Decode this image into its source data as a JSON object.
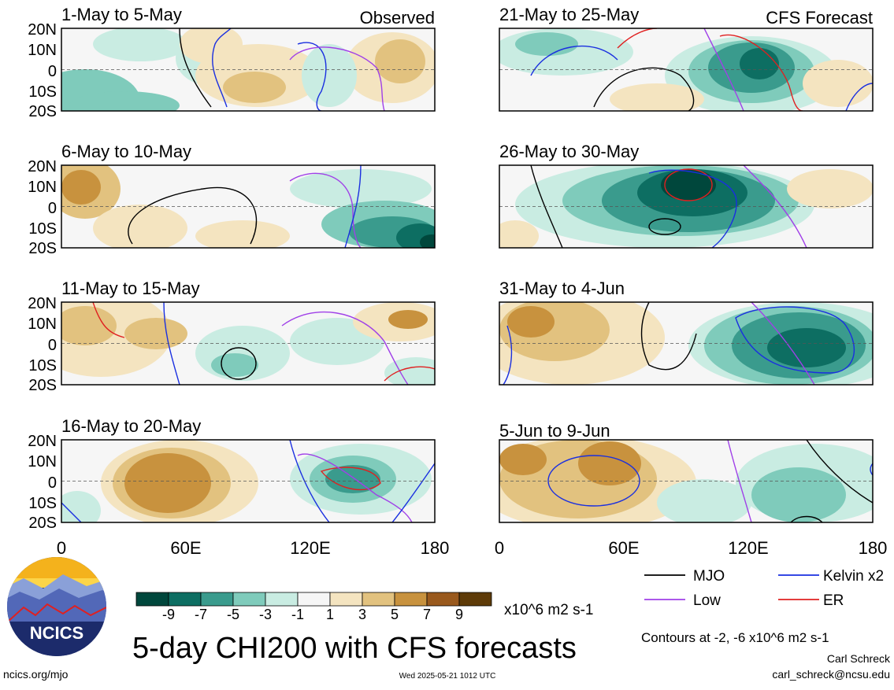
{
  "labels": {
    "observed": "Observed",
    "forecast": "CFS Forecast"
  },
  "panels": [
    {
      "date": "1-May to 5-May"
    },
    {
      "date": "6-May to 10-May"
    },
    {
      "date": "11-May to 15-May"
    },
    {
      "date": "16-May to 20-May"
    },
    {
      "date": "21-May to 25-May"
    },
    {
      "date": "26-May to 30-May"
    },
    {
      "date": "31-May to 4-Jun"
    },
    {
      "date": "5-Jun to 9-Jun"
    }
  ],
  "y_ticks": [
    "20N",
    "10N",
    "0",
    "10S",
    "20S"
  ],
  "x_ticks": [
    "0",
    "60E",
    "120E",
    "180"
  ],
  "colorbar": {
    "colors": [
      "#00473c",
      "#0d6e62",
      "#3a9b8d",
      "#7fcbbb",
      "#c9ece2",
      "#f6f6f6",
      "#f4e4c0",
      "#e2c27f",
      "#c8923e",
      "#99591d",
      "#5e3b08"
    ],
    "tick_labels": [
      "-9",
      "-7",
      "-5",
      "-3",
      "-1",
      "1",
      "3",
      "5",
      "7",
      "9"
    ],
    "units": "x10^6 m2 s-1"
  },
  "legend": [
    {
      "label": "MJO",
      "color": "#000000"
    },
    {
      "label": "Kelvin x2",
      "color": "#1a2fe0"
    },
    {
      "label": "Low",
      "color": "#a040e8"
    },
    {
      "label": "ER",
      "color": "#e02020"
    }
  ],
  "title": "5-day CHI200 with CFS forecasts",
  "contours_note": "Contours at -2, -6 x10^6 m2 s-1",
  "author": "Carl Schreck",
  "email": "carl_schreck@ncsu.edu",
  "timestamp": "Wed 2025-05-21 1012 UTC",
  "url": "ncics.org/mjo",
  "logo_text": "NCICS"
}
